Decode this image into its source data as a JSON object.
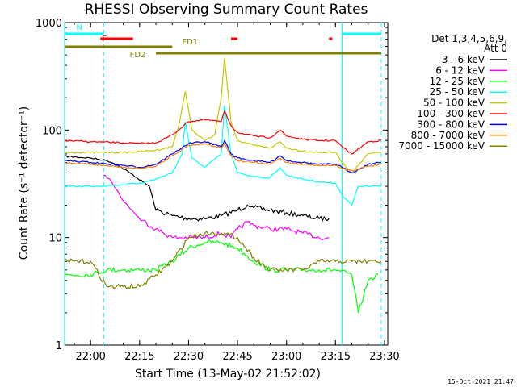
{
  "chart_data": {
    "type": "line",
    "title": "RHESSI Observing Summary Count Rates",
    "xlabel": "Start Time (13-May-02 21:52:02)",
    "ylabel": "Count Rate (s⁻¹ detector⁻¹)",
    "y_scale": "log",
    "ylim": [
      1,
      1000
    ],
    "xlim": [
      "21:52:02",
      "23:31:00"
    ],
    "x_ticks": [
      "22:00",
      "22:15",
      "22:30",
      "22:45",
      "23:00",
      "23:15",
      "23:30"
    ],
    "y_ticks": [
      "1",
      "10",
      "100",
      "1000"
    ],
    "timestamp": "15-Oct-2021 21:47",
    "legend_header": [
      "Det 1,3,4,5,6,9,",
      "Att 0"
    ],
    "series": [
      {
        "name": "3 - 6 keV",
        "color": "#000000",
        "x": [
          "21:52",
          "22:00",
          "22:05",
          "22:08",
          "22:12",
          "22:16",
          "22:18",
          "22:20",
          "22:25",
          "22:30",
          "22:35",
          "22:40",
          "22:45",
          "22:48",
          "22:50",
          "22:55",
          "23:00",
          "23:05",
          "23:10",
          "23:13"
        ],
        "y": [
          57,
          55,
          52,
          48,
          40,
          33,
          30,
          18,
          16,
          15,
          15,
          16,
          18,
          20,
          19,
          18,
          17,
          16,
          15,
          15
        ]
      },
      {
        "name": "6 - 12 keV",
        "color": "#ff00ff",
        "x": [
          "22:04",
          "22:06",
          "22:10",
          "22:15",
          "22:20",
          "22:25",
          "22:30",
          "22:35",
          "22:40",
          "22:43",
          "22:45",
          "22:48",
          "22:50",
          "22:55",
          "23:00",
          "23:05",
          "23:10",
          "23:13"
        ],
        "y": [
          38,
          35,
          22,
          15,
          12,
          10,
          10,
          10,
          11,
          10,
          12,
          14,
          13,
          12,
          12,
          11,
          10,
          10
        ]
      },
      {
        "name": "12 - 25 keV",
        "color": "#00ff00",
        "x": [
          "21:52",
          "22:00",
          "22:05",
          "22:10",
          "22:15",
          "22:20",
          "22:25",
          "22:30",
          "22:35",
          "22:40",
          "22:45",
          "22:50",
          "22:55",
          "23:00",
          "23:05",
          "23:10",
          "23:15",
          "23:20",
          "23:22",
          "23:25",
          "23:28"
        ],
        "y": [
          4.5,
          4.5,
          5,
          5,
          5,
          5,
          6,
          8,
          9,
          9,
          8,
          6,
          5,
          5,
          5,
          5,
          5,
          4.5,
          2,
          4,
          4.5
        ]
      },
      {
        "name": "25 - 50 keV",
        "color": "#00ffff",
        "x": [
          "21:52",
          "22:00",
          "22:10",
          "22:15",
          "22:20",
          "22:25",
          "22:28",
          "22:29",
          "22:31",
          "22:35",
          "22:40",
          "22:41",
          "22:43",
          "22:45",
          "22:50",
          "22:55",
          "22:58",
          "23:00",
          "23:05",
          "23:10",
          "23:15",
          "23:17",
          "23:20",
          "23:22",
          "23:25",
          "23:29"
        ],
        "y": [
          30,
          30,
          31,
          32,
          35,
          40,
          60,
          120,
          55,
          45,
          60,
          170,
          60,
          40,
          37,
          36,
          45,
          38,
          35,
          33,
          32,
          25,
          20,
          30,
          30,
          30
        ]
      },
      {
        "name": "50 - 100 keV",
        "color": "#c8c800",
        "x": [
          "21:52",
          "22:00",
          "22:10",
          "22:15",
          "22:20",
          "22:25",
          "22:27",
          "22:29",
          "22:31",
          "22:35",
          "22:38",
          "22:40",
          "22:41",
          "22:43",
          "22:45",
          "22:50",
          "22:55",
          "22:58",
          "23:00",
          "23:05",
          "23:10",
          "23:15",
          "23:17",
          "23:20",
          "23:25",
          "23:29"
        ],
        "y": [
          62,
          62,
          62,
          63,
          65,
          70,
          110,
          230,
          100,
          80,
          90,
          200,
          470,
          120,
          80,
          72,
          68,
          78,
          68,
          64,
          62,
          62,
          50,
          40,
          60,
          62
        ]
      },
      {
        "name": "100 - 300 keV",
        "color": "#ff0000",
        "x": [
          "21:52",
          "22:00",
          "22:10",
          "22:15",
          "22:20",
          "22:25",
          "22:30",
          "22:35",
          "22:40",
          "22:41",
          "22:43",
          "22:45",
          "22:50",
          "22:55",
          "22:58",
          "23:00",
          "23:05",
          "23:10",
          "23:15",
          "23:17",
          "23:20",
          "23:25",
          "23:29"
        ],
        "y": [
          80,
          78,
          76,
          75,
          76,
          90,
          120,
          125,
          120,
          150,
          110,
          95,
          88,
          85,
          100,
          88,
          82,
          80,
          80,
          70,
          60,
          78,
          80
        ]
      },
      {
        "name": "300 - 800 keV",
        "color": "#0000ff",
        "x": [
          "21:52",
          "22:00",
          "22:10",
          "22:15",
          "22:20",
          "22:25",
          "22:30",
          "22:35",
          "22:40",
          "22:41",
          "22:43",
          "22:45",
          "22:50",
          "22:55",
          "22:58",
          "23:00",
          "23:05",
          "23:10",
          "23:15",
          "23:17",
          "23:20",
          "23:25",
          "23:29"
        ],
        "y": [
          52,
          50,
          47,
          45,
          48,
          60,
          75,
          78,
          70,
          80,
          60,
          55,
          52,
          50,
          58,
          52,
          50,
          48,
          48,
          45,
          40,
          48,
          50
        ]
      },
      {
        "name": "800 - 7000 keV",
        "color": "#ff8000",
        "x": [
          "21:52",
          "22:00",
          "22:10",
          "22:15",
          "22:20",
          "22:25",
          "22:30",
          "22:35",
          "22:40",
          "22:41",
          "22:43",
          "22:45",
          "22:50",
          "22:55",
          "22:58",
          "23:00",
          "23:05",
          "23:10",
          "23:15",
          "23:17",
          "23:20",
          "23:25",
          "23:29"
        ],
        "y": [
          50,
          48,
          45,
          44,
          46,
          58,
          72,
          75,
          68,
          75,
          58,
          52,
          50,
          48,
          55,
          50,
          48,
          47,
          47,
          44,
          42,
          46,
          48
        ]
      },
      {
        "name": "7000 - 15000 keV",
        "color": "#808000",
        "x": [
          "21:52",
          "22:00",
          "22:05",
          "22:10",
          "22:15",
          "22:20",
          "22:25",
          "22:30",
          "22:35",
          "22:40",
          "22:45",
          "22:50",
          "22:55",
          "23:00",
          "23:05",
          "23:10",
          "23:15",
          "23:20",
          "23:25",
          "23:29"
        ],
        "y": [
          6,
          6,
          3.5,
          3.5,
          3.5,
          4.5,
          6,
          10,
          11,
          11,
          10,
          6.5,
          5,
          5,
          5,
          6,
          6,
          6,
          6,
          6
        ]
      }
    ],
    "flags": [
      {
        "name": "N",
        "color": "#00ffff",
        "segments": [
          [
            "21:52",
            "22:04"
          ],
          [
            "23:17",
            "23:29"
          ]
        ]
      },
      {
        "name": "F",
        "color": "#ff0000",
        "segments": [
          [
            "22:03",
            "22:13"
          ],
          [
            "22:43",
            "22:45"
          ],
          [
            "23:13",
            "23:14"
          ]
        ]
      },
      {
        "name": "FD1",
        "color": "#808000",
        "segments": [
          [
            "21:52",
            "22:25"
          ]
        ]
      },
      {
        "name": "FD2",
        "color": "#808000",
        "segments": [
          [
            "22:20",
            "23:29"
          ]
        ]
      }
    ],
    "vlines_solid": [
      "21:52",
      "23:17"
    ],
    "vlines_dashed": [
      "22:04",
      "23:29"
    ]
  }
}
